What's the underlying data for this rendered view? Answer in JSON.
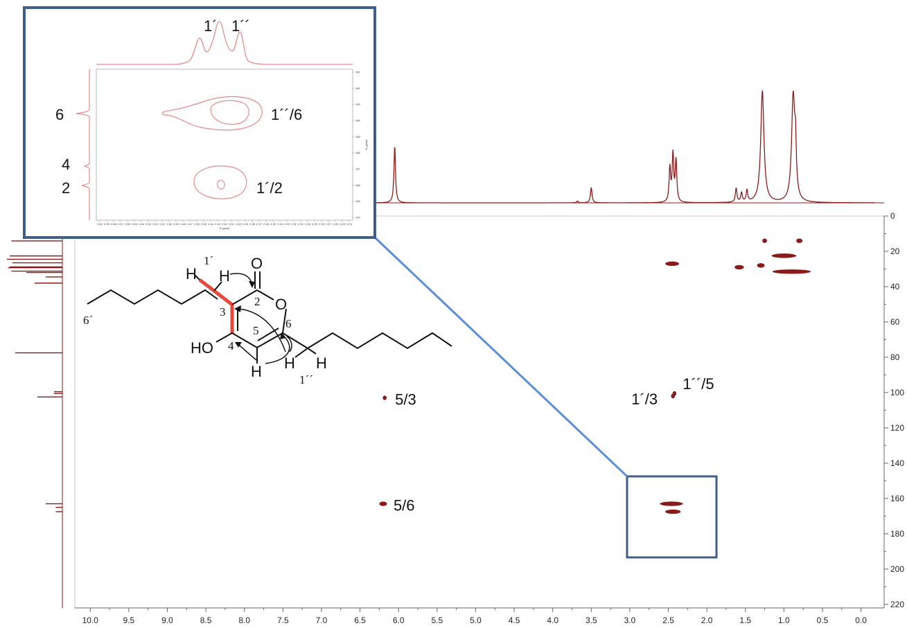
{
  "chart_data": {
    "type": "heatmap",
    "title": "",
    "xlabel": "",
    "ylabel": "",
    "xlim": [
      10.2,
      -0.3
    ],
    "ylim": [
      0,
      222
    ],
    "x_ticks": [
      "10.0",
      "9.5",
      "9.0",
      "8.5",
      "8.0",
      "7.5",
      "7.0",
      "6.5",
      "6.0",
      "5.5",
      "5.0",
      "4.5",
      "4.0",
      "3.5",
      "3.0",
      "2.5",
      "2.0",
      "1.5",
      "1.0",
      "0.5",
      "0.0"
    ],
    "y_ticks": [
      "0",
      "20",
      "40",
      "60",
      "80",
      "100",
      "120",
      "140",
      "160",
      "180",
      "200",
      "220"
    ],
    "crosspeaks": [
      {
        "x": 2.45,
        "y": 27,
        "x_span": 0.18,
        "label": ""
      },
      {
        "x": 1.58,
        "y": 29,
        "x_span": 0.12,
        "label": ""
      },
      {
        "x": 1.3,
        "y": 28,
        "x_span": 0.1,
        "label": ""
      },
      {
        "x": 1.0,
        "y": 22.5,
        "x_span": 0.32,
        "label": ""
      },
      {
        "x": 0.9,
        "y": 31.5,
        "x_span": 0.5,
        "label": ""
      },
      {
        "x": 1.25,
        "y": 14,
        "x_span": 0.06,
        "label": ""
      },
      {
        "x": 0.8,
        "y": 14,
        "x_span": 0.08,
        "label": ""
      },
      {
        "x": 6.18,
        "y": 103,
        "x_span": 0.05,
        "label": "5/3"
      },
      {
        "x": 6.2,
        "y": 163,
        "x_span": 0.1,
        "label": "5/6"
      },
      {
        "x": 2.44,
        "y": 102,
        "x_span": 0.05,
        "label": "1´/3"
      },
      {
        "x": 2.42,
        "y": 100.5,
        "x_span": 0.05,
        "label": "1´´/5"
      },
      {
        "x": 2.46,
        "y": 163,
        "x_span": 0.3,
        "label": ""
      },
      {
        "x": 2.44,
        "y": 167.5,
        "x_span": 0.2,
        "label": ""
      }
    ],
    "projection_1h_peaks": [
      {
        "x": 6.05,
        "height": 0.48
      },
      {
        "x": 3.5,
        "height": 0.13
      },
      {
        "x": 3.68,
        "height": 0.015
      },
      {
        "x": 2.48,
        "height": 0.29
      },
      {
        "x": 2.44,
        "height": 0.4
      },
      {
        "x": 2.4,
        "height": 0.35
      },
      {
        "x": 1.62,
        "height": 0.12
      },
      {
        "x": 1.55,
        "height": 0.08
      },
      {
        "x": 1.48,
        "height": 0.1
      },
      {
        "x": 1.28,
        "height": 0.95
      },
      {
        "x": 0.88,
        "height": 0.9
      },
      {
        "x": 0.85,
        "height": 0.35
      }
    ],
    "projection_13c_peaks": [
      {
        "y": 14.1,
        "height": 0.92
      },
      {
        "y": 22.6,
        "height": 0.95
      },
      {
        "y": 24.5,
        "height": 1.0
      },
      {
        "y": 26.5,
        "height": 0.9
      },
      {
        "y": 28.8,
        "height": 0.95
      },
      {
        "y": 29.3,
        "height": 0.98
      },
      {
        "y": 31.2,
        "height": 0.92
      },
      {
        "y": 32.0,
        "height": 0.65
      },
      {
        "y": 34.5,
        "height": 0.3
      },
      {
        "y": 38.0,
        "height": 0.5
      },
      {
        "y": 77.5,
        "height": 0.85
      },
      {
        "y": 99.5,
        "height": 0.15
      },
      {
        "y": 100.5,
        "height": 0.15
      },
      {
        "y": 102.5,
        "height": 0.45
      },
      {
        "y": 163.0,
        "height": 0.3
      },
      {
        "y": 165.0,
        "height": 0.12
      },
      {
        "y": 167.5,
        "height": 0.12
      }
    ]
  },
  "inset": {
    "peak_labels_top": [
      "1´",
      "1´´"
    ],
    "side_labels": [
      "6",
      "4",
      "2"
    ],
    "crosspeak_labels": [
      "1´´/6",
      "1´/2"
    ],
    "x_ticks": [
      "2.60",
      "2.59",
      "2.58",
      "2.57",
      "2.56",
      "2.55",
      "2.54",
      "2.53",
      "2.52",
      "2.51",
      "2.50",
      "2.49",
      "2.48",
      "2.47",
      "2.46",
      "2.45",
      "2.44",
      "2.43",
      "2.42",
      "2.41",
      "2.40",
      "2.39",
      "2.38",
      "2.37",
      "2.36",
      "2.35",
      "2.34",
      "2.33",
      "2.32",
      "2.31",
      "2.30",
      "2.29",
      "2.28",
      "2.27",
      "2.26",
      "2.25",
      "2.24"
    ],
    "y_ticks": [
      "161",
      "162",
      "163",
      "164",
      "165",
      "166",
      "167",
      "168",
      "169",
      "170"
    ],
    "x_axis_title": "f2 (ppm)",
    "y_axis_title": "f1 (ppm)"
  },
  "molecule": {
    "atoms": {
      "o_carbonyl": "O",
      "o_ring": "O",
      "ho": "HO",
      "h1": "H",
      "h2": "H",
      "h3": "H",
      "h4": "H",
      "h5": "H"
    },
    "numbers": {
      "n1p": "1´",
      "n2": "2",
      "n3": "3",
      "n4": "4",
      "n5": "5",
      "n6": "6",
      "n6p": "6´",
      "n1pp": "1´´"
    }
  },
  "colors": {
    "spectrum": "#8b1a1a",
    "inset_contour": "#e38b8b",
    "frame": "#4a6f9c",
    "connector": "#5b8ed6",
    "highlight_bond": "#e8473a"
  }
}
